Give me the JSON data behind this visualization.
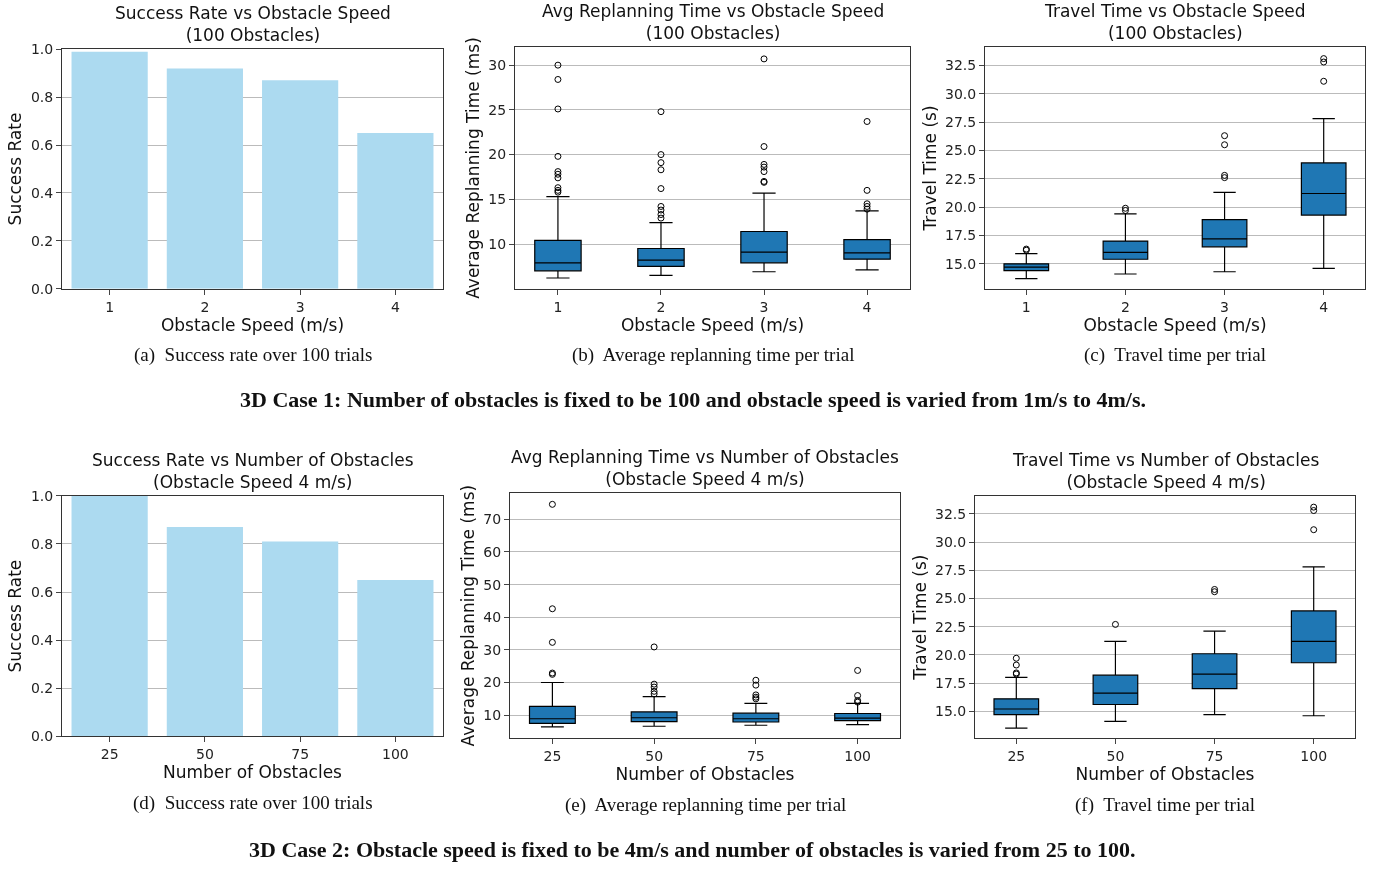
{
  "chart_data": [
    {
      "type": "bar",
      "title": "Success Rate vs Obstacle Speed",
      "subtitle": "(100 Obstacles)",
      "xlabel": "Obstacle Speed (m/s)",
      "ylabel": "Success Rate",
      "categories": [
        "1",
        "2",
        "3",
        "4"
      ],
      "values": [
        0.99,
        0.92,
        0.87,
        0.65
      ],
      "color": "#acdaf0",
      "ylim": [
        0,
        1
      ],
      "yticks": [
        {
          "value": 0,
          "label": "0.0"
        },
        0.2,
        0.4,
        0.6,
        0.8,
        {
          "value": 1,
          "label": "1.0"
        }
      ],
      "grid": "y",
      "annotations": [
        "(a)  Success rate over 100 trials"
      ]
    },
    {
      "type": "box",
      "title": "Avg Replanning Time vs Obstacle Speed",
      "subtitle": "(100 Obstacles)",
      "xlabel": "Obstacle Speed (m/s)",
      "ylabel": "Average Replanning Time (ms)",
      "categories": [
        "1",
        "2",
        "3",
        "4"
      ],
      "color": "#1f77b4",
      "ylim": [
        5,
        32
      ],
      "yticks": [
        10,
        15,
        20,
        25,
        30
      ],
      "grid": "y",
      "annotations": [
        "(b)  Average replanning time per trial"
      ],
      "boxes": [
        {
          "low": 6.2,
          "q1": 7.0,
          "median": 7.9,
          "q3": 10.4,
          "high": 15.3,
          "outliers": [
            30.0,
            28.4,
            25.1,
            19.8,
            18.1,
            17.8,
            17.4,
            16.3,
            16.0,
            15.8
          ]
        },
        {
          "low": 6.5,
          "q1": 7.5,
          "median": 8.2,
          "q3": 9.5,
          "high": 12.4,
          "outliers": [
            24.8,
            20.0,
            19.1,
            18.3,
            16.2,
            14.2,
            13.8,
            13.3,
            12.9
          ]
        },
        {
          "low": 6.9,
          "q1": 7.9,
          "median": 9.1,
          "q3": 11.4,
          "high": 15.7,
          "outliers": [
            30.7,
            20.9,
            18.9,
            18.6,
            18.1,
            17.0,
            16.9
          ]
        },
        {
          "low": 7.1,
          "q1": 8.3,
          "median": 9.0,
          "q3": 10.5,
          "high": 13.7,
          "outliers": [
            23.7,
            16.0,
            14.5,
            14.2,
            13.9
          ]
        }
      ]
    },
    {
      "type": "box",
      "title": "Travel Time vs Obstacle Speed",
      "subtitle": "(100 Obstacles)",
      "xlabel": "Obstacle Speed (m/s)",
      "ylabel": "Travel Time (s)",
      "categories": [
        "1",
        "2",
        "3",
        "4"
      ],
      "color": "#1f77b4",
      "ylim": [
        12.8,
        34.1
      ],
      "yticks": [
        {
          "value": 15,
          "label": "15.0"
        },
        17.5,
        {
          "value": 20,
          "label": "20.0"
        },
        22.5,
        {
          "value": 25,
          "label": "25.0"
        },
        27.5,
        {
          "value": 30,
          "label": "30.0"
        },
        32.5
      ],
      "grid": "y",
      "annotations": [
        "(c)  Travel time per trial",
        "3D Case 1: Number of obstacles is fixed to be 100 and obstacle speed is varied from 1m/s to 4m/s."
      ],
      "boxes": [
        {
          "low": 13.7,
          "q1": 14.4,
          "median": 14.7,
          "q3": 15.0,
          "high": 15.9,
          "outliers": [
            16.3,
            16.2
          ]
        },
        {
          "low": 14.1,
          "q1": 15.4,
          "median": 16.0,
          "q3": 17.0,
          "high": 19.4,
          "outliers": [
            19.9,
            19.7
          ]
        },
        {
          "low": 14.3,
          "q1": 16.5,
          "median": 17.2,
          "q3": 18.9,
          "high": 21.3,
          "outliers": [
            26.3,
            25.5,
            22.8,
            22.6
          ]
        },
        {
          "low": 14.6,
          "q1": 19.3,
          "median": 21.2,
          "q3": 23.9,
          "high": 27.8,
          "outliers": [
            33.1,
            32.8,
            31.1
          ]
        }
      ]
    },
    {
      "type": "bar",
      "title": "Success Rate vs Number of Obstacles",
      "subtitle": "(Obstacle Speed 4 m/s)",
      "xlabel": "Number of Obstacles",
      "ylabel": "Success Rate",
      "categories": [
        "25",
        "50",
        "75",
        "100"
      ],
      "values": [
        1.0,
        0.87,
        0.81,
        0.65
      ],
      "color": "#acdaf0",
      "ylim": [
        0,
        1
      ],
      "yticks": [
        {
          "value": 0,
          "label": "0.0"
        },
        0.2,
        0.4,
        0.6,
        0.8,
        {
          "value": 1,
          "label": "1.0"
        }
      ],
      "grid": "y",
      "annotations": [
        "(d)  Success rate over 100 trials"
      ]
    },
    {
      "type": "box",
      "title": "Avg Replanning Time vs Number of Obstacles",
      "subtitle": "(Obstacle Speed 4 m/s)",
      "xlabel": "Number of Obstacles",
      "ylabel": "Average Replanning Time (ms)",
      "categories": [
        "25",
        "50",
        "75",
        "100"
      ],
      "color": "#1f77b4",
      "ylim": [
        2.9,
        78.1
      ],
      "yticks": [
        10,
        20,
        30,
        40,
        50,
        60,
        70
      ],
      "grid": "y",
      "annotations": [
        "(e)  Average replanning time per trial"
      ],
      "boxes": [
        {
          "low": 6.4,
          "q1": 7.5,
          "median": 8.9,
          "q3": 12.7,
          "high": 20.0,
          "outliers": [
            74.6,
            42.6,
            32.3,
            22.9,
            22.5
          ]
        },
        {
          "low": 6.6,
          "q1": 8.0,
          "median": 9.2,
          "q3": 11.0,
          "high": 15.7,
          "outliers": [
            30.9,
            19.5,
            18.6,
            17.3,
            16.5
          ]
        },
        {
          "low": 6.9,
          "q1": 7.9,
          "median": 8.9,
          "q3": 10.6,
          "high": 13.6,
          "outliers": [
            20.7,
            19.2,
            16.2,
            15.5,
            15.0
          ]
        },
        {
          "low": 7.1,
          "q1": 8.3,
          "median": 9.1,
          "q3": 10.5,
          "high": 13.6,
          "outliers": [
            23.7,
            16.0,
            14.5,
            14.0
          ]
        }
      ]
    },
    {
      "type": "box",
      "title": "Travel Time vs Number of Obstacles",
      "subtitle": "(Obstacle Speed 4 m/s)",
      "xlabel": "Number of Obstacles",
      "ylabel": "Travel Time (s)",
      "categories": [
        "25",
        "50",
        "75",
        "100"
      ],
      "color": "#1f77b4",
      "ylim": [
        12.6,
        34.1
      ],
      "yticks": [
        {
          "value": 15,
          "label": "15.0"
        },
        17.5,
        {
          "value": 20,
          "label": "20.0"
        },
        22.5,
        {
          "value": 25,
          "label": "25.0"
        },
        27.5,
        {
          "value": 30,
          "label": "30.0"
        },
        32.5
      ],
      "grid": "y",
      "annotations": [
        "(f)  Travel time per trial",
        "3D Case 2: Obstacle speed is fixed to be 4m/s and number of obstacles is varied from 25 to 100."
      ],
      "boxes": [
        {
          "low": 13.5,
          "q1": 14.7,
          "median": 15.2,
          "q3": 16.1,
          "high": 18.0,
          "outliers": [
            19.7,
            19.1,
            18.4,
            18.3
          ]
        },
        {
          "low": 14.1,
          "q1": 15.6,
          "median": 16.6,
          "q3": 18.2,
          "high": 21.2,
          "outliers": [
            22.7
          ]
        },
        {
          "low": 14.7,
          "q1": 17.0,
          "median": 18.3,
          "q3": 20.1,
          "high": 22.1,
          "outliers": [
            25.8,
            25.6
          ]
        },
        {
          "low": 14.6,
          "q1": 19.3,
          "median": 21.2,
          "q3": 23.9,
          "high": 27.8,
          "outliers": [
            33.1,
            32.8,
            31.1
          ]
        }
      ]
    }
  ]
}
